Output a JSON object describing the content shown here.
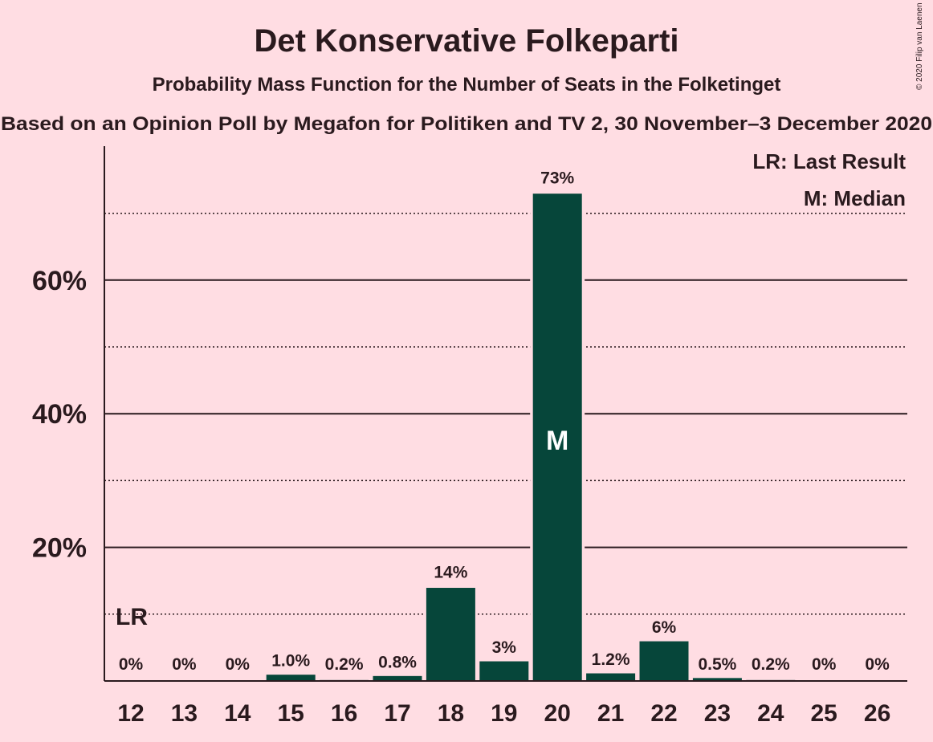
{
  "header": {
    "title": "Det Konservative Folkeparti",
    "subtitle": "Probability Mass Function for the Number of Seats in the Folketinget",
    "subtitle2": "Based on an Opinion Poll by Megafon for Politiken and TV 2, 30 November–3 December 2020"
  },
  "copyright": "© 2020 Filip van Laenen",
  "legend": {
    "last_result": "LR: Last Result",
    "median": "M: Median"
  },
  "markers": {
    "last_result_label": "LR",
    "median_label": "M"
  },
  "colors": {
    "background": "#ffdde3",
    "bar": "#06463a",
    "text": "#2a1a1e"
  },
  "chart_data": {
    "type": "bar",
    "title": "Det Konservative Folkeparti",
    "xlabel": "",
    "ylabel": "",
    "categories": [
      "12",
      "13",
      "14",
      "15",
      "16",
      "17",
      "18",
      "19",
      "20",
      "21",
      "22",
      "23",
      "24",
      "25",
      "26"
    ],
    "values": [
      0,
      0,
      0,
      1.0,
      0.2,
      0.8,
      14,
      3,
      73,
      1.2,
      6,
      0.5,
      0.2,
      0,
      0
    ],
    "data_labels": [
      "0%",
      "0%",
      "0%",
      "1.0%",
      "0.2%",
      "0.8%",
      "14%",
      "3%",
      "73%",
      "1.2%",
      "6%",
      "0.5%",
      "0.2%",
      "0%",
      "0%"
    ],
    "ylim": [
      0,
      80
    ],
    "yticks": [
      20,
      40,
      60
    ],
    "ytick_labels": [
      "20%",
      "40%",
      "60%"
    ],
    "minor_gridlines": [
      10,
      30,
      50,
      70
    ],
    "last_result_category": "12",
    "median_category": "20",
    "legend_position": "top-right",
    "grid": true
  }
}
